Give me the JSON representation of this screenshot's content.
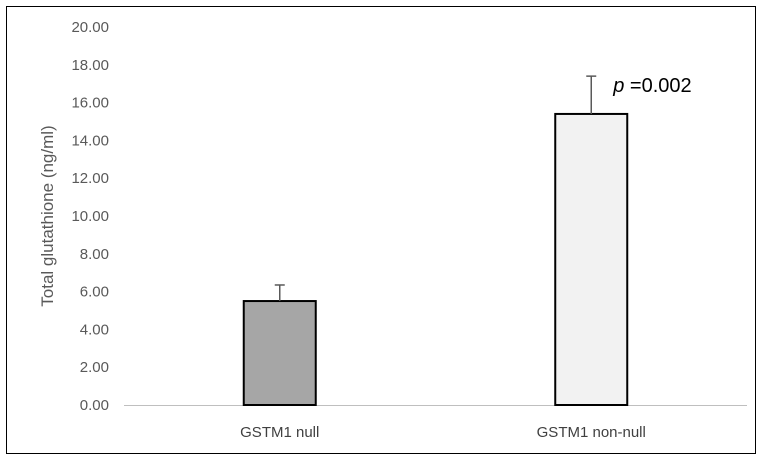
{
  "chart_data": {
    "type": "bar",
    "categories": [
      "GSTM1 null",
      "GSTM1 non-null"
    ],
    "values": [
      5.5,
      15.4
    ],
    "error_plus": [
      0.85,
      2.0
    ],
    "ylabel": "Total glutathione (ng/ml)",
    "xlabel": "",
    "ylim": [
      0,
      20
    ],
    "yticks": [
      "0.00",
      "2.00",
      "4.00",
      "6.00",
      "8.00",
      "10.00",
      "12.00",
      "14.00",
      "16.00",
      "18.00",
      "20.00"
    ],
    "grid": false,
    "legend": "none",
    "annotation": {
      "prefix": "p",
      "text": " =0.002",
      "category_index": 1
    },
    "colors": {
      "bars": [
        "#a6a6a6",
        "#f2f2f2"
      ],
      "bar_outline": "#000000",
      "error_bar": "#595959",
      "axis": "#bfbfbf",
      "frame": "#000000"
    }
  }
}
